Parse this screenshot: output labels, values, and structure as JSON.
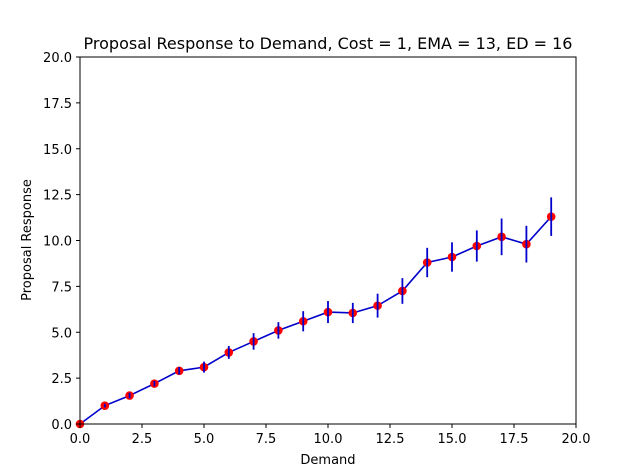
{
  "chart_data": {
    "type": "line",
    "title": "Proposal Response to Demand, Cost = 1, EMA = 13, ED = 16",
    "xlabel": "Demand",
    "ylabel": "Proposal Response",
    "xlim": [
      0,
      20
    ],
    "ylim": [
      0,
      20
    ],
    "xticks": [
      "0.0",
      "2.5",
      "5.0",
      "7.5",
      "10.0",
      "12.5",
      "15.0",
      "17.5",
      "20.0"
    ],
    "yticks": [
      "0.0",
      "2.5",
      "5.0",
      "7.5",
      "10.0",
      "12.5",
      "15.0",
      "17.5",
      "20.0"
    ],
    "grid": false,
    "line_color": "#0000cc",
    "marker_color": "#ff0000",
    "errorbar_color": "#0000cc",
    "series": [
      {
        "x": [
          0,
          1,
          2,
          3,
          4,
          5,
          6,
          7,
          8,
          9,
          10,
          11,
          12,
          13,
          14,
          15,
          16,
          17,
          18,
          19
        ],
        "y": [
          0.0,
          1.0,
          1.55,
          2.2,
          2.9,
          3.1,
          3.9,
          4.5,
          5.1,
          5.6,
          6.1,
          6.05,
          6.45,
          7.25,
          8.8,
          9.1,
          9.7,
          10.2,
          9.8,
          11.3
        ],
        "yerr": [
          0.0,
          0.1,
          0.15,
          0.15,
          0.2,
          0.3,
          0.35,
          0.45,
          0.45,
          0.55,
          0.6,
          0.55,
          0.65,
          0.7,
          0.8,
          0.8,
          0.85,
          1.0,
          1.0,
          1.05
        ]
      }
    ]
  }
}
